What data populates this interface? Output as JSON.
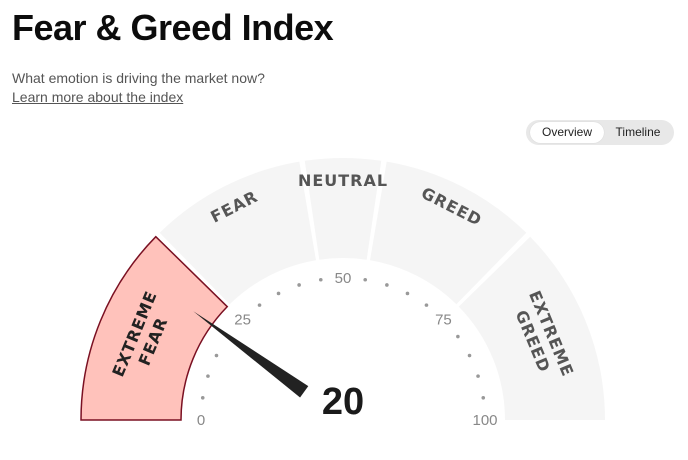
{
  "header": {
    "title": "Fear & Greed Index",
    "subtitle": "What emotion is driving the market now?",
    "learn_more_link": "Learn more about the index"
  },
  "view_toggle": {
    "options": [
      "Overview",
      "Timeline"
    ],
    "selected": "Overview"
  },
  "gauge": {
    "score": 20,
    "score_display": "20",
    "scale_min": 0,
    "scale_max": 100,
    "zones": [
      {
        "label_lines": [
          "EXTREME",
          "FEAR"
        ],
        "from": 0,
        "to": 25,
        "active": true
      },
      {
        "label_lines": [
          "FEAR"
        ],
        "from": 25,
        "to": 45,
        "active": false
      },
      {
        "label_lines": [
          "NEUTRAL"
        ],
        "from": 45,
        "to": 55,
        "active": false
      },
      {
        "label_lines": [
          "GREED"
        ],
        "from": 55,
        "to": 75,
        "active": false
      },
      {
        "label_lines": [
          "EXTREME",
          "GREED"
        ],
        "from": 75,
        "to": 100,
        "active": false
      }
    ],
    "tick_labels": [
      "0",
      "25",
      "50",
      "75",
      "100"
    ],
    "colors": {
      "active_fill": "#ffc2bb",
      "active_stroke": "#7a1022",
      "inactive_fill": "#f5f5f5",
      "needle": "#222222",
      "tick_dot": "#999999"
    }
  }
}
